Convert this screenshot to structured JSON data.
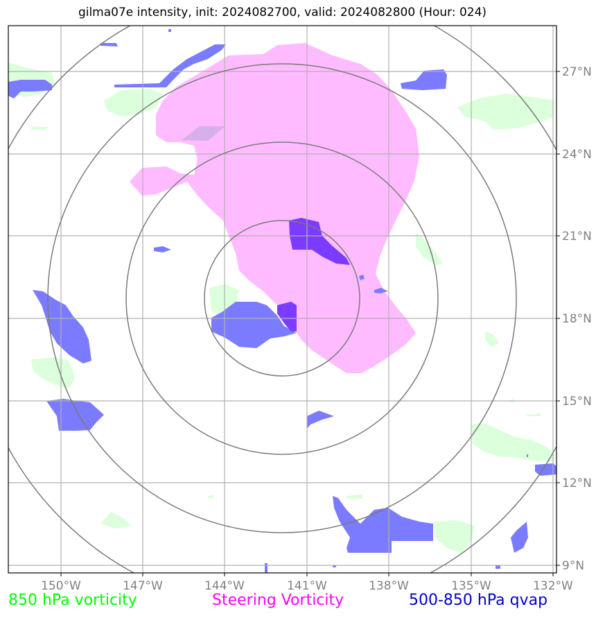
{
  "title": "gilma07e intensity, init: 2024082700, valid: 2024082800 (Hour: 024)",
  "axes": {
    "lon_ticks": [
      "150°W",
      "147°W",
      "144°W",
      "141°W",
      "138°W",
      "135°W",
      "132°W"
    ],
    "lat_ticks": [
      "27°N",
      "24°N",
      "21°N",
      "18°N",
      "15°N",
      "12°N",
      "9°N"
    ]
  },
  "legend": [
    {
      "label": "850 hPa vorticity",
      "color": "#00ff00"
    },
    {
      "label": "Steering Vorticity",
      "color": "#ff00ff"
    },
    {
      "label": "500-850 hPa qvap",
      "color": "#0000cc"
    }
  ],
  "colors": {
    "vorticity_850": "#d9ffd9",
    "steering_vorticity": "#ffbbff",
    "qvap": "#7b7bff",
    "overlap": "#7b3cff",
    "grid": "#b0b0b0",
    "range_rings": "#808080"
  },
  "storm_center": {
    "lon": -141.9,
    "lat": 18.8
  },
  "range_rings_count": 4
}
